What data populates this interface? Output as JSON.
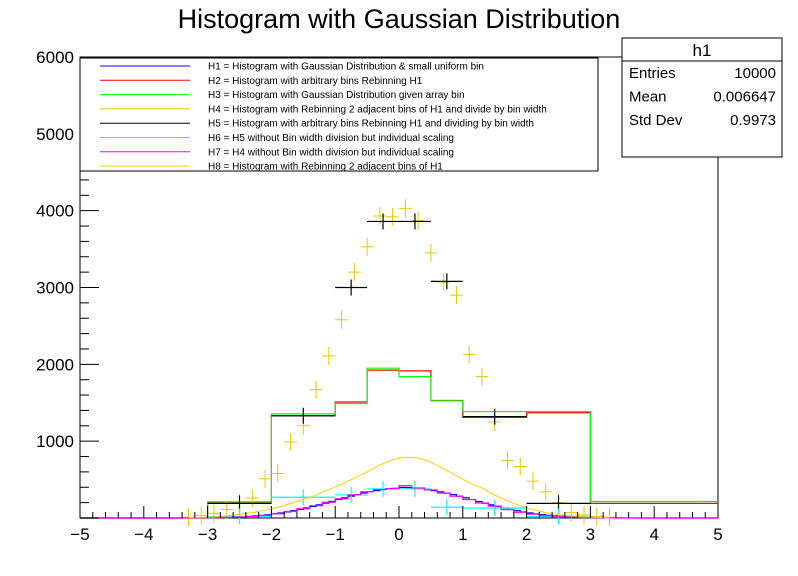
{
  "chart_data": {
    "type": "histogram",
    "title": "Histogram with Gaussian Distribution",
    "xlabel": "",
    "ylabel": "",
    "xlim": [
      -5,
      5
    ],
    "ylim": [
      0,
      6000
    ],
    "xticks": [
      "−5",
      "−4",
      "−3",
      "−2",
      "−1",
      "0",
      "1",
      "2",
      "3",
      "4",
      "5"
    ],
    "yticks": [
      "1000",
      "2000",
      "3000",
      "4000",
      "5000",
      "6000"
    ],
    "legend_position": "top-left",
    "stats": {
      "name": "h1",
      "rows": [
        {
          "label": "Entries",
          "value": "10000"
        },
        {
          "label": "Mean",
          "value": "0.006647"
        },
        {
          "label": "Std Dev",
          "value": "0.9973"
        }
      ]
    },
    "series": [
      {
        "name": "H1 = Histogram with Gaussian Distribution & small uniform bin",
        "color": "#0000ff",
        "style": "step",
        "edges": [
          -5,
          -4.9,
          -4.8,
          -4.7,
          -4.6,
          -4.5,
          -4.4,
          -4.3,
          -4.2,
          -4.1,
          -4,
          -3.9,
          -3.8,
          -3.7,
          -3.6,
          -3.5,
          -3.4,
          -3.3,
          -3.2,
          -3.1,
          -3,
          -2.9,
          -2.8,
          -2.7,
          -2.6,
          -2.5,
          -2.4,
          -2.3,
          -2.2,
          -2.1,
          -2,
          -1.9,
          -1.8,
          -1.7,
          -1.6,
          -1.5,
          -1.4,
          -1.3,
          -1.2,
          -1.1,
          -1,
          -0.9,
          -0.8,
          -0.7,
          -0.6,
          -0.5,
          -0.4,
          -0.3,
          -0.2,
          -0.1,
          0,
          0.1,
          0.2,
          0.3,
          0.4,
          0.5,
          0.6,
          0.7,
          0.8,
          0.9,
          1,
          1.1,
          1.2,
          1.3,
          1.4,
          1.5,
          1.6,
          1.7,
          1.8,
          1.9,
          2,
          2.1,
          2.2,
          2.3,
          2.4,
          2.5,
          2.6,
          2.7,
          2.8,
          2.9,
          3,
          3.1,
          3.2,
          3.3,
          3.4,
          3.5,
          3.6,
          3.7,
          3.8,
          3.9,
          4,
          4.1,
          4.2,
          4.3,
          4.4,
          4.5,
          4.6,
          4.7,
          4.8,
          4.9,
          5
        ],
        "values": [
          0,
          0,
          0,
          0,
          0,
          0,
          0,
          0,
          0,
          0,
          0,
          0,
          0,
          0,
          0,
          0,
          1,
          2,
          2,
          3,
          4,
          6,
          8,
          10,
          13,
          17,
          22,
          28,
          35,
          43,
          54,
          66,
          79,
          95,
          111,
          130,
          150,
          171,
          193,
          215,
          240,
          262,
          285,
          305,
          325,
          341,
          356,
          370,
          379,
          386,
          398,
          395,
          388,
          380,
          370,
          356,
          341,
          323,
          305,
          285,
          262,
          240,
          215,
          193,
          171,
          150,
          130,
          111,
          95,
          79,
          66,
          54,
          43,
          35,
          28,
          22,
          17,
          13,
          10,
          8,
          6,
          4,
          3,
          2,
          2,
          1,
          1,
          0,
          0,
          0,
          0,
          0,
          0,
          0,
          0,
          0,
          0,
          0,
          0,
          0
        ]
      },
      {
        "name": "H2 = Histogram with arbitrary bins Rebinning H1",
        "color": "#ff0000",
        "style": "step",
        "edges": [
          -5,
          -3,
          -2,
          -1,
          -0.5,
          0,
          0.5,
          1,
          2,
          3,
          5
        ],
        "values": [
          0,
          200,
          1330,
          1510,
          1925,
          1915,
          1530,
          1310,
          1370,
          190
        ]
      },
      {
        "name": "H3 = Histogram with Gaussian Distribution given array bin",
        "color": "#00ff00",
        "style": "step",
        "edges": [
          -5,
          -3,
          -2,
          -1,
          -0.5,
          0,
          0.5,
          1,
          2,
          3,
          5
        ],
        "values": [
          0,
          210,
          1355,
          1490,
          1950,
          1840,
          1525,
          1385,
          1385,
          215
        ]
      },
      {
        "name": "H4 = Histogram with Rebinning 2 adjacent bins of H1 and divide by bin width",
        "color": "#e6c800",
        "style": "markers",
        "x": [
          -3.3,
          -3.1,
          -2.9,
          -2.7,
          -2.5,
          -2.3,
          -2.1,
          -1.9,
          -1.7,
          -1.5,
          -1.3,
          -1.1,
          -0.9,
          -0.7,
          -0.5,
          -0.3,
          -0.1,
          0.1,
          0.3,
          0.5,
          0.7,
          0.9,
          1.1,
          1.3,
          1.5,
          1.7,
          1.9,
          2.1,
          2.3,
          2.5,
          2.7,
          2.9,
          3.1,
          3.3
        ],
        "values": [
          10,
          30,
          60,
          110,
          190,
          260,
          510,
          580,
          990,
          1200,
          1670,
          2110,
          2580,
          3200,
          3530,
          3930,
          3920,
          4030,
          3870,
          3450,
          3070,
          2900,
          2130,
          1840,
          1250,
          750,
          670,
          480,
          340,
          200,
          70,
          40,
          20,
          10
        ],
        "halfwidth": 0.1
      },
      {
        "name": "H5 = Histogram with arbitrary bins Rebinning H1  and dividing by bin width",
        "color": "#000000",
        "style": "errorbars",
        "x": [
          -2.5,
          -1.5,
          -0.75,
          -0.25,
          0.25,
          0.75,
          1.5,
          2.5
        ],
        "values": [
          190,
          1330,
          3000,
          3860,
          3860,
          3080,
          1320,
          190
        ],
        "halfwidth": [
          0.5,
          0.5,
          0.25,
          0.25,
          0.25,
          0.25,
          0.5,
          0.5
        ]
      },
      {
        "name": "H6 = H5 without Bin width division but individual scaling",
        "color": "#00ffff",
        "style": "errorbars",
        "x": [
          -2.5,
          -1.5,
          -0.75,
          -0.25,
          0.25,
          0.75,
          1.5,
          2.5
        ],
        "values": [
          20,
          270,
          300,
          380,
          380,
          140,
          130,
          20
        ],
        "halfwidth": [
          0.5,
          0.5,
          0.25,
          0.25,
          0.25,
          0.25,
          0.5,
          0.5
        ]
      },
      {
        "name": "H7 = H4 without Bin width division but individual scaling",
        "color": "#ff00ff",
        "style": "step",
        "edges": [
          -5,
          -4.8,
          -4.6,
          -4.4,
          -4.2,
          -4,
          -3.8,
          -3.6,
          -3.4,
          -3.2,
          -3,
          -2.8,
          -2.6,
          -2.4,
          -2.2,
          -2,
          -1.8,
          -1.6,
          -1.4,
          -1.2,
          -1,
          -0.8,
          -0.6,
          -0.4,
          -0.2,
          0,
          0.2,
          0.4,
          0.6,
          0.8,
          1,
          1.2,
          1.4,
          1.6,
          1.8,
          2,
          2.2,
          2.4,
          2.6,
          2.8,
          3,
          3.2,
          3.4,
          3.6,
          3.8,
          4,
          4.2,
          4.4,
          4.6,
          4.8,
          5
        ],
        "values": [
          0,
          0,
          0,
          0,
          0,
          0,
          0,
          0,
          1,
          2,
          4,
          8,
          13,
          20,
          35,
          55,
          85,
          120,
          160,
          205,
          250,
          300,
          340,
          370,
          385,
          420,
          390,
          365,
          325,
          285,
          240,
          195,
          155,
          110,
          75,
          50,
          30,
          20,
          12,
          6,
          3,
          1,
          0,
          0,
          0,
          0,
          0,
          0,
          0,
          0
        ]
      },
      {
        "name": "H8 = Histogram with Rebinning 2 adjacent bins of H1",
        "color": "#ffcc00",
        "style": "curve",
        "x": [
          -3.3,
          -3.1,
          -2.9,
          -2.7,
          -2.5,
          -2.3,
          -2.1,
          -1.9,
          -1.7,
          -1.5,
          -1.3,
          -1.1,
          -0.9,
          -0.7,
          -0.5,
          -0.3,
          -0.1,
          0.1,
          0.3,
          0.5,
          0.7,
          0.9,
          1.1,
          1.3,
          1.5,
          1.7,
          1.9,
          2.1,
          2.3,
          2.5,
          2.7,
          2.9,
          3.1,
          3.3
        ],
        "values": [
          3,
          8,
          15,
          28,
          45,
          70,
          100,
          140,
          190,
          240,
          300,
          370,
          440,
          520,
          600,
          690,
          760,
          790,
          780,
          730,
          640,
          550,
          460,
          390,
          300,
          220,
          160,
          110,
          70,
          45,
          28,
          15,
          8,
          3
        ]
      }
    ]
  }
}
